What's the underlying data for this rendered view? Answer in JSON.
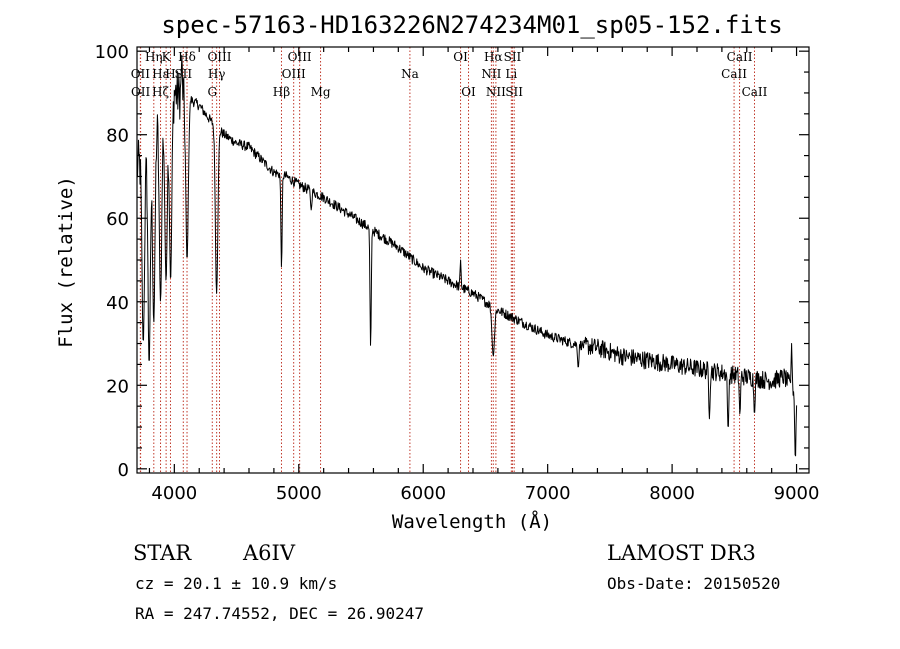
{
  "chart_data": {
    "type": "line",
    "title": "spec-57163-HD163226N274234M01_sp05-152.fits",
    "xlabel": "Wavelength (Å)",
    "ylabel": "Flux (relative)",
    "xlim": [
      3700,
      9100
    ],
    "ylim": [
      -1,
      101
    ],
    "x_ticks": [
      4000,
      5000,
      6000,
      7000,
      8000,
      9000
    ],
    "x_tick_labels": [
      "4000",
      "5000",
      "6000",
      "7000",
      "8000",
      "9000"
    ],
    "y_ticks": [
      0,
      20,
      40,
      60,
      80,
      100
    ],
    "y_tick_labels": [
      "0",
      "20",
      "40",
      "60",
      "80",
      "100"
    ],
    "series": [
      {
        "name": "flux",
        "continuum": [
          [
            3700,
            72
          ],
          [
            3800,
            78
          ],
          [
            3900,
            86
          ],
          [
            4000,
            90
          ],
          [
            4100,
            89
          ],
          [
            4200,
            87
          ],
          [
            4300,
            83
          ],
          [
            4400,
            80
          ],
          [
            4500,
            78
          ],
          [
            4600,
            77
          ],
          [
            4700,
            74
          ],
          [
            4800,
            71
          ],
          [
            4900,
            70
          ],
          [
            5000,
            68
          ],
          [
            5200,
            65
          ],
          [
            5400,
            61
          ],
          [
            5600,
            57
          ],
          [
            5800,
            53
          ],
          [
            6000,
            48
          ],
          [
            6200,
            45
          ],
          [
            6400,
            42
          ],
          [
            6600,
            38
          ],
          [
            6800,
            35
          ],
          [
            7000,
            32
          ],
          [
            7200,
            30
          ],
          [
            7400,
            29
          ],
          [
            7600,
            27
          ],
          [
            7800,
            26
          ],
          [
            8000,
            25
          ],
          [
            8200,
            24
          ],
          [
            8400,
            23
          ],
          [
            8600,
            22
          ],
          [
            8800,
            21
          ],
          [
            8900,
            22
          ],
          [
            9000,
            18
          ]
        ],
        "absorption_features": [
          [
            3750,
            30
          ],
          [
            3798,
            25
          ],
          [
            3835,
            35
          ],
          [
            3889,
            40
          ],
          [
            3933,
            45
          ],
          [
            3970,
            45
          ],
          [
            4102,
            50
          ],
          [
            4340,
            42
          ],
          [
            4861,
            48
          ],
          [
            5100,
            62
          ],
          [
            5577,
            29
          ],
          [
            6563,
            27
          ],
          [
            7246,
            24
          ],
          [
            8300,
            12
          ],
          [
            8450,
            9
          ],
          [
            8545,
            13
          ],
          [
            8662,
            13
          ],
          [
            8990,
            2
          ]
        ],
        "emission_features": [
          [
            4060,
            99
          ],
          [
            6300,
            50
          ],
          [
            8960,
            30
          ]
        ]
      }
    ],
    "spectral_lines": [
      {
        "label": "Hη",
        "wavelength": 3835,
        "row": 1
      },
      {
        "label": "OII",
        "wavelength": 3727,
        "row": 2
      },
      {
        "label": "OII",
        "wavelength": 3729,
        "row": 3
      },
      {
        "label": "Hε",
        "wavelength": 3889,
        "row": 2
      },
      {
        "label": "Hζ",
        "wavelength": 3889,
        "row": 3
      },
      {
        "label": "K",
        "wavelength": 3934,
        "row": 1
      },
      {
        "label": "H",
        "wavelength": 3969,
        "row": 2
      },
      {
        "label": "Hδ",
        "wavelength": 4102,
        "row": 1
      },
      {
        "label": "SII",
        "wavelength": 4072,
        "row": 2
      },
      {
        "label": "OIII",
        "wavelength": 4363,
        "row": 1
      },
      {
        "label": "Hγ",
        "wavelength": 4340,
        "row": 2
      },
      {
        "label": "G",
        "wavelength": 4305,
        "row": 3
      },
      {
        "label": "OIII",
        "wavelength": 5007,
        "row": 1
      },
      {
        "label": "OIII",
        "wavelength": 4959,
        "row": 2
      },
      {
        "label": "Hβ",
        "wavelength": 4861,
        "row": 3
      },
      {
        "label": "Mg",
        "wavelength": 5175,
        "row": 3
      },
      {
        "label": "Na",
        "wavelength": 5893,
        "row": 2
      },
      {
        "label": "OI",
        "wavelength": 6300,
        "row": 1
      },
      {
        "label": "OI",
        "wavelength": 6364,
        "row": 3
      },
      {
        "label": "Hα",
        "wavelength": 6563,
        "row": 1
      },
      {
        "label": "NII",
        "wavelength": 6548,
        "row": 2
      },
      {
        "label": "NII",
        "wavelength": 6584,
        "row": 3
      },
      {
        "label": "SII",
        "wavelength": 6717,
        "row": 1
      },
      {
        "label": "Li",
        "wavelength": 6708,
        "row": 2
      },
      {
        "label": "SII",
        "wavelength": 6731,
        "row": 3
      },
      {
        "label": "CaII",
        "wavelength": 8542,
        "row": 1
      },
      {
        "label": "CaII",
        "wavelength": 8498,
        "row": 2
      },
      {
        "label": "CaII",
        "wavelength": 8662,
        "row": 3
      }
    ],
    "grid": false
  },
  "info": {
    "object_class": "STAR",
    "subclass": "A6IV",
    "survey": "LAMOST DR3",
    "cz": "cz = 20.1 ± 10.9 km/s",
    "obs_date": "Obs-Date: 20150520",
    "coords": "RA = 247.74552, DEC =  26.90247"
  },
  "colors": {
    "spectral_line": "#c0392b",
    "spectrum": "#000000",
    "background": "#ffffff"
  }
}
